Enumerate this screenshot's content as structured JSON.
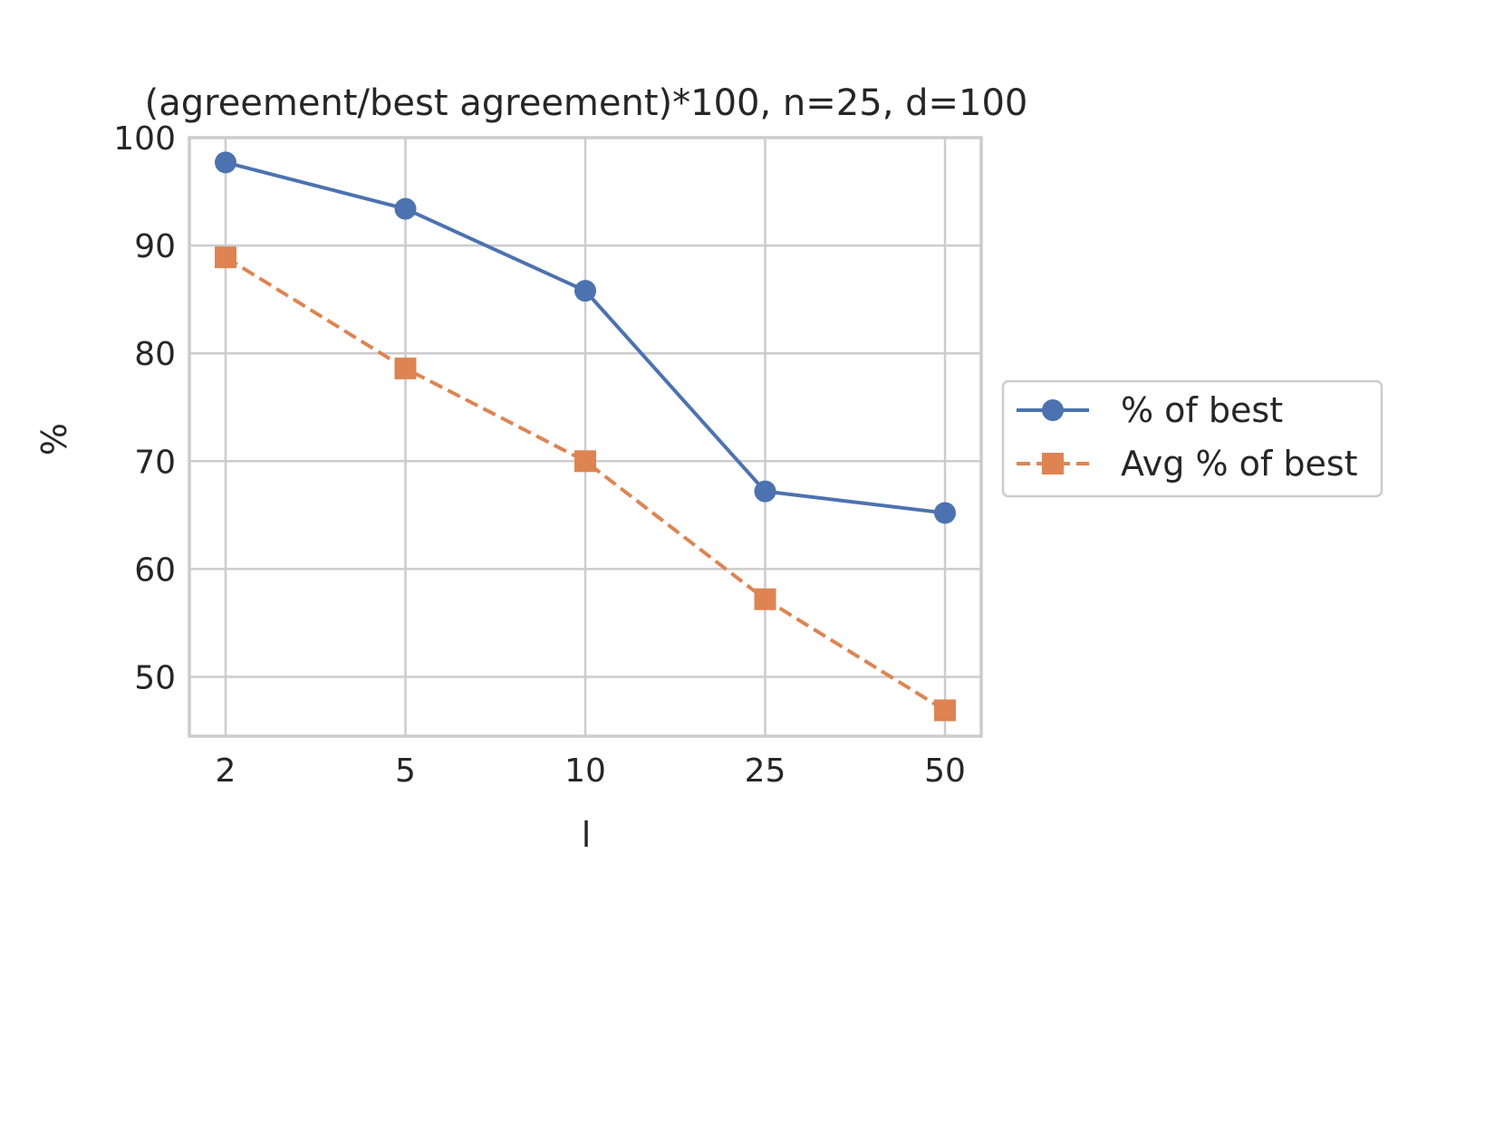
{
  "chart_data": {
    "type": "line",
    "title": "(agreement/best agreement)*100, n=25, d=100",
    "xlabel": "l",
    "ylabel": "%",
    "categories": [
      "2",
      "5",
      "10",
      "25",
      "50"
    ],
    "yticks": [
      "50",
      "60",
      "70",
      "80",
      "90",
      "100"
    ],
    "ylim": [
      44.5,
      100
    ],
    "grid": true,
    "legend_position": "right",
    "series": [
      {
        "name": "% of best",
        "values": [
          97.7,
          93.4,
          85.8,
          67.2,
          65.2
        ],
        "color": "#4c72b0",
        "marker": "circle",
        "line_style": "solid"
      },
      {
        "name": "Avg % of best",
        "values": [
          88.9,
          78.6,
          70.0,
          57.2,
          46.9
        ],
        "color": "#dd8452",
        "marker": "square",
        "line_style": "dashed"
      }
    ]
  }
}
